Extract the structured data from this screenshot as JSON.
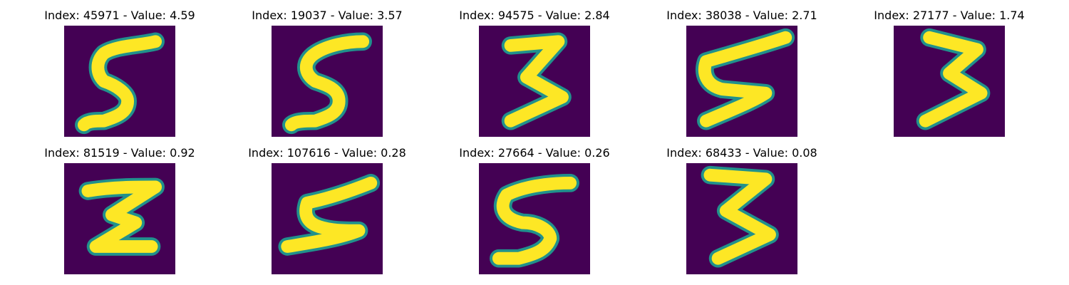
{
  "colors": {
    "background": "#440154",
    "edge": "#21918c",
    "stroke": "#fde725"
  },
  "panels": [
    {
      "title": "Index: 45971 - Value: 4.59",
      "index": 45971,
      "value": 4.59,
      "digit_glyph": "five"
    },
    {
      "title": "Index: 19037 - Value: 3.57",
      "index": 19037,
      "value": 3.57,
      "digit_glyph": "five"
    },
    {
      "title": "Index: 94575 - Value: 2.84",
      "index": 94575,
      "value": 2.84,
      "digit_glyph": "three"
    },
    {
      "title": "Index: 38038 - Value: 2.71",
      "index": 38038,
      "value": 2.71,
      "digit_glyph": "five"
    },
    {
      "title": "Index: 27177 - Value: 1.74",
      "index": 27177,
      "value": 1.74,
      "digit_glyph": "three"
    },
    {
      "title": "Index: 81519 - Value: 0.92",
      "index": 81519,
      "value": 0.92,
      "digit_glyph": "sigma"
    },
    {
      "title": "Index: 107616 - Value: 0.28",
      "index": 107616,
      "value": 0.28,
      "digit_glyph": "five"
    },
    {
      "title": "Index: 27664 - Value: 0.26",
      "index": 27664,
      "value": 0.26,
      "digit_glyph": "five"
    },
    {
      "title": "Index: 68433 - Value: 0.08",
      "index": 68433,
      "value": 0.08,
      "digit_glyph": "three"
    }
  ]
}
